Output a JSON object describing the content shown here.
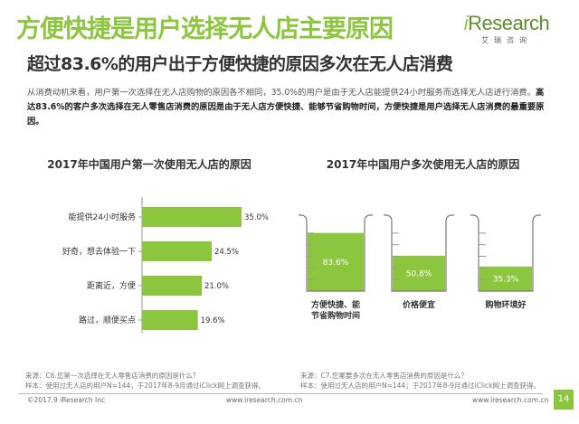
{
  "page": {
    "title": "方便快捷是用户选择无人店主要原因",
    "subtitle": "超过83.6%的用户出于方便快捷的原因多次在无人店消费",
    "brand_logo": "iResearch",
    "brand_sub": "艾瑞咨询",
    "desc_normal": "从消费动机来看，用户第一次选择在无人店购物的原因各不相同，35.0%的用户是由于无人店能提供24小时服务而选择无人店进行消费。",
    "desc_bold": "高达83.6%的客户多次选择在无人零售店消费的原因是由于无人店方便快捷、能够节省购物时间，方便快捷是用户选择无人店消费的最重要原因。",
    "accent": "#8cc63f",
    "source_left_1": "来源：C6.您第一次选择在无人零售店消费的原因是什么？",
    "source_left_2": "样本：使用过无人店的用户N=144；于2017年8-9月通过iClick网上调查获得。",
    "source_right_1": "来源：C7.您哪要多次在无人零售店消费的原因是什么？",
    "source_right_2": "样本：使用过无人店的用户N=144；于2017年8-9月通过iClick网上调查获得。",
    "copyright": "©2017.9 iResearch Inc",
    "website": "www.iresearch.com.cn",
    "page_number": "14"
  },
  "chart_data": [
    {
      "type": "bar",
      "orientation": "horizontal",
      "title": "2017年中国用户第一次使用无人店的原因",
      "categories": [
        "能提供24小时服务",
        "好奇，想去体验一下",
        "距离近，方便",
        "路过，顺便买点"
      ],
      "values": [
        35.0,
        24.5,
        21.0,
        19.6
      ],
      "labels": [
        "35.0%",
        "24.5%",
        "21.0%",
        "19.6%"
      ],
      "xlim": [
        0,
        35
      ],
      "color": "#8cc63f"
    },
    {
      "type": "bar",
      "style": "beaker",
      "title": "2017年中国用户多次使用无人店的原因",
      "categories": [
        "方便快捷、能节省购物时间",
        "价格便宜",
        "购物环境好"
      ],
      "category_lines": [
        [
          "方便快捷、能",
          "节省购物时间"
        ],
        [
          "价格便宜"
        ],
        [
          "购物环境好"
        ]
      ],
      "values": [
        83.6,
        50.8,
        35.3
      ],
      "labels": [
        "83.6%",
        "50.8%",
        "35.3%"
      ],
      "ylim": [
        0,
        100
      ],
      "color": "#8cc63f"
    }
  ]
}
